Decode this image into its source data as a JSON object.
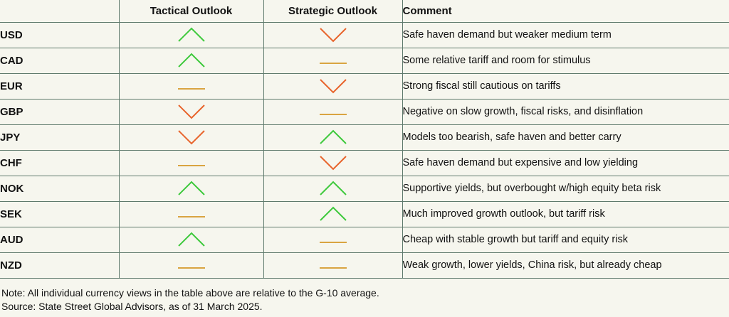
{
  "colors": {
    "up": "#3ec93c",
    "down": "#e8642c",
    "neutral": "#d9a441",
    "rule": "#5f7a6c",
    "background": "#f6f6ee"
  },
  "table": {
    "headers": {
      "currency": "",
      "tactical": "Tactical Outlook",
      "strategic": "Strategic Outlook",
      "comment": "Comment"
    },
    "rows": [
      {
        "currency": "USD",
        "tactical": "up",
        "strategic": "down",
        "comment": "Safe haven demand but weaker medium term"
      },
      {
        "currency": "CAD",
        "tactical": "up",
        "strategic": "neutral",
        "comment": "Some relative tariff and room for stimulus"
      },
      {
        "currency": "EUR",
        "tactical": "neutral",
        "strategic": "down",
        "comment": "Strong fiscal still cautious on tariffs"
      },
      {
        "currency": "GBP",
        "tactical": "down",
        "strategic": "neutral",
        "comment": "Negative on slow growth, fiscal risks, and disinflation"
      },
      {
        "currency": "JPY",
        "tactical": "down",
        "strategic": "up",
        "comment": "Models too bearish, safe haven and better carry"
      },
      {
        "currency": "CHF",
        "tactical": "neutral",
        "strategic": "down",
        "comment": "Safe haven demand but expensive and low yielding"
      },
      {
        "currency": "NOK",
        "tactical": "up",
        "strategic": "up",
        "comment": "Supportive yields, but overbought w/high equity beta risk"
      },
      {
        "currency": "SEK",
        "tactical": "neutral",
        "strategic": "up",
        "comment": "Much improved growth outlook, but tariff risk"
      },
      {
        "currency": "AUD",
        "tactical": "up",
        "strategic": "neutral",
        "comment": "Cheap with stable growth but tariff and equity risk"
      },
      {
        "currency": "NZD",
        "tactical": "neutral",
        "strategic": "neutral",
        "comment": "Weak growth, lower yields, China risk, but already cheap"
      }
    ]
  },
  "notes": {
    "note": "Note: All individual currency views in the table above are relative to the G-10 average.",
    "source": "Source: State Street Global Advisors, as of 31 March 2025."
  }
}
